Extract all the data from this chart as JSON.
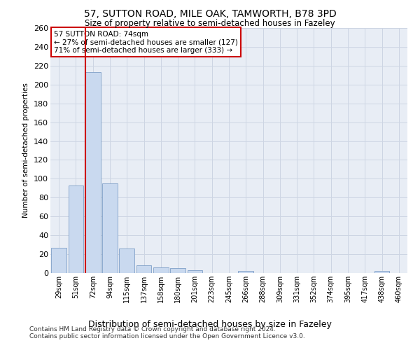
{
  "title": "57, SUTTON ROAD, MILE OAK, TAMWORTH, B78 3PD",
  "subtitle": "Size of property relative to semi-detached houses in Fazeley",
  "xlabel_bottom": "Distribution of semi-detached houses by size in Fazeley",
  "ylabel": "Number of semi-detached properties",
  "footer_line1": "Contains HM Land Registry data © Crown copyright and database right 2024.",
  "footer_line2": "Contains public sector information licensed under the Open Government Licence v3.0.",
  "categories": [
    "29sqm",
    "51sqm",
    "72sqm",
    "94sqm",
    "115sqm",
    "137sqm",
    "158sqm",
    "180sqm",
    "201sqm",
    "223sqm",
    "245sqm",
    "266sqm",
    "288sqm",
    "309sqm",
    "331sqm",
    "352sqm",
    "374sqm",
    "395sqm",
    "417sqm",
    "438sqm",
    "460sqm"
  ],
  "values": [
    27,
    93,
    213,
    95,
    26,
    8,
    6,
    5,
    3,
    0,
    0,
    2,
    0,
    0,
    0,
    0,
    0,
    0,
    0,
    2,
    0
  ],
  "bar_color": "#c9d9ef",
  "bar_edge_color": "#7fa0c8",
  "grid_color": "#cdd5e3",
  "background_color": "#e8edf5",
  "vline_x_index": 2,
  "vline_color": "#cc0000",
  "annotation_title": "57 SUTTON ROAD: 74sqm",
  "annotation_line1": "← 27% of semi-detached houses are smaller (127)",
  "annotation_line2": "71% of semi-detached houses are larger (333) →",
  "annotation_box_color": "#cc0000",
  "ylim": [
    0,
    260
  ],
  "yticks": [
    0,
    20,
    40,
    60,
    80,
    100,
    120,
    140,
    160,
    180,
    200,
    220,
    240,
    260
  ]
}
